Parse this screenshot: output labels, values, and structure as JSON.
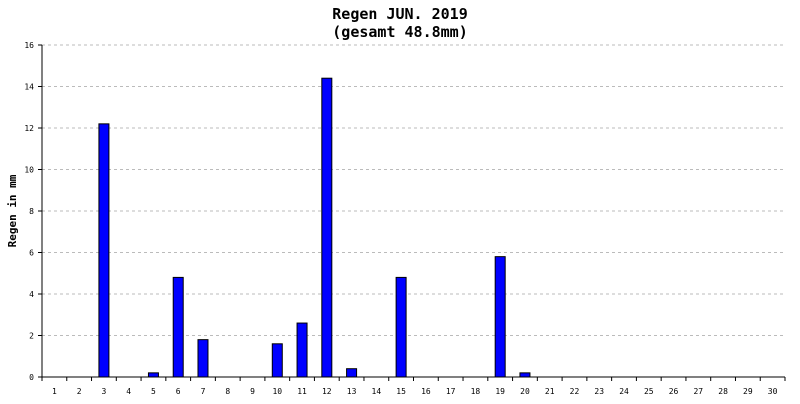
{
  "chart_data": {
    "type": "bar",
    "title": "Regen JUN. 2019",
    "subtitle": "(gesamt 48.8mm)",
    "xlabel": "",
    "ylabel": "Regen in mm",
    "categories": [
      "1",
      "2",
      "3",
      "4",
      "5",
      "6",
      "7",
      "8",
      "9",
      "10",
      "11",
      "12",
      "13",
      "14",
      "15",
      "16",
      "17",
      "18",
      "19",
      "20",
      "21",
      "22",
      "23",
      "24",
      "25",
      "26",
      "27",
      "28",
      "29",
      "30"
    ],
    "values": [
      0,
      0,
      12.2,
      0,
      0.2,
      4.8,
      1.8,
      0,
      0,
      1.6,
      2.6,
      14.4,
      0.4,
      0,
      4.8,
      0,
      0,
      0,
      5.8,
      0.2,
      0,
      0,
      0,
      0,
      0,
      0,
      0,
      0,
      0,
      0
    ],
    "ylim": [
      0,
      16
    ],
    "yticks": [
      0,
      2,
      4,
      6,
      8,
      10,
      12,
      14,
      16
    ],
    "grid": true,
    "bar_color": "#0000ff"
  }
}
